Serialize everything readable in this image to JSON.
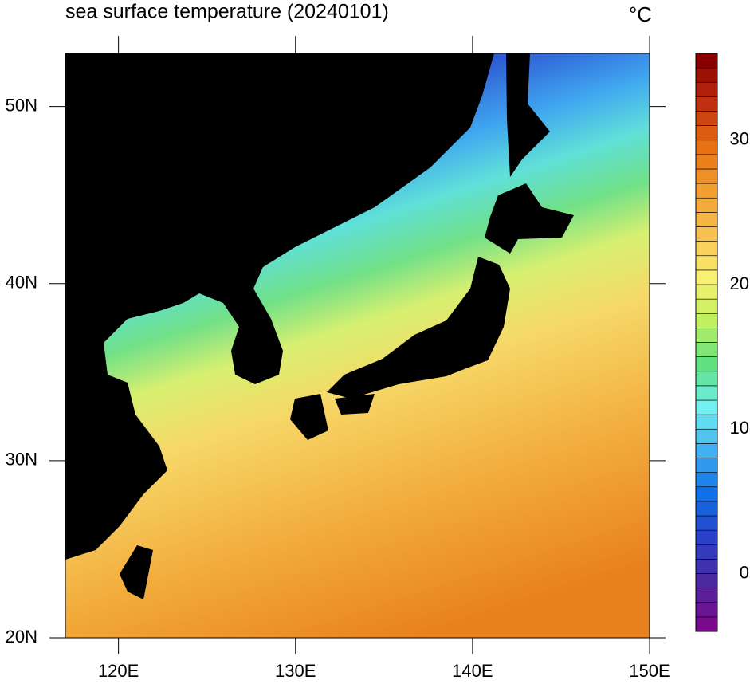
{
  "chart_data": {
    "type": "map",
    "title": "sea surface temperature (20240101)",
    "units": "°C",
    "xlim": [
      117,
      150
    ],
    "ylim": [
      20,
      53
    ],
    "xticks": [
      {
        "value": 120,
        "label": "120E"
      },
      {
        "value": 130,
        "label": "130E"
      },
      {
        "value": 140,
        "label": "140E"
      },
      {
        "value": 150,
        "label": "150E"
      }
    ],
    "yticks": [
      {
        "value": 20,
        "label": "20N"
      },
      {
        "value": 30,
        "label": "30N"
      },
      {
        "value": 40,
        "label": "40N"
      },
      {
        "value": 50,
        "label": "50N"
      }
    ],
    "colorbar": {
      "lim": [
        -4,
        36
      ],
      "step": 1,
      "ticks": [
        0,
        10,
        20,
        30
      ],
      "colors": [
        "#7a0a8c",
        "#4b2aa0",
        "#2a40c8",
        "#1070e8",
        "#40b0f0",
        "#70f0f0",
        "#60e080",
        "#c0f060",
        "#f8f070",
        "#f8c050",
        "#f0a030",
        "#e87010",
        "#c03010",
        "#8a0000"
      ]
    }
  }
}
